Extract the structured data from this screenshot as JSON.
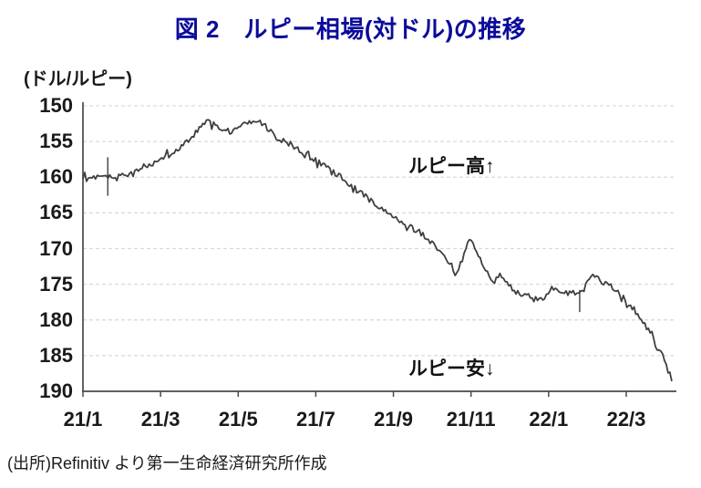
{
  "title": "図 2　ルピー相場(対ドル)の推移",
  "unit_label": "(ドル/ルピー)",
  "annotations": {
    "high": "ルピー高↑",
    "low": "ルピー安↓"
  },
  "source": "(出所)Refinitiv より第一生命経済研究所作成",
  "colors": {
    "title": "#0b0b9b",
    "line": "#3f3f3f",
    "grid": "#d9d9d9",
    "axis": "#4a4a4a",
    "text": "#1a1a1a"
  },
  "chart_data": {
    "type": "line",
    "title": "図 2　ルピー相場(対ドル)の推移",
    "ylabel": "(ドル/ルピー)",
    "y_axis_inverted": true,
    "ylim": [
      150,
      190
    ],
    "y_ticks": [
      150,
      155,
      160,
      165,
      170,
      175,
      180,
      185,
      190
    ],
    "x_tick_labels": [
      "21/1",
      "21/3",
      "21/5",
      "21/7",
      "21/9",
      "21/11",
      "22/1",
      "22/3"
    ],
    "x_tick_months": [
      0,
      2,
      4,
      6,
      8,
      10,
      12,
      14
    ],
    "x_range_months": [
      0,
      15.17
    ],
    "grid": "horizontal-dashed",
    "annotations": [
      {
        "text": "ルピー高↑",
        "anchor_value": 157.5
      },
      {
        "text": "ルピー安↓",
        "anchor_value": 185.5
      }
    ],
    "series": [
      {
        "points_month_value": [
          [
            0.0,
            160.2
          ],
          [
            0.35,
            160.0
          ],
          [
            0.64,
            160.1
          ],
          [
            0.9,
            159.9
          ],
          [
            1.1,
            159.8
          ],
          [
            1.3,
            159.5
          ],
          [
            1.5,
            158.7
          ],
          [
            1.7,
            158.1
          ],
          [
            1.9,
            157.6
          ],
          [
            2.1,
            157.2
          ],
          [
            2.3,
            156.6
          ],
          [
            2.5,
            156.0
          ],
          [
            2.7,
            154.9
          ],
          [
            2.9,
            153.7
          ],
          [
            3.1,
            152.7
          ],
          [
            3.3,
            152.4
          ],
          [
            3.55,
            153.1
          ],
          [
            3.8,
            153.7
          ],
          [
            4.0,
            153.1
          ],
          [
            4.2,
            152.3
          ],
          [
            4.4,
            152.0
          ],
          [
            4.6,
            152.5
          ],
          [
            4.8,
            153.3
          ],
          [
            5.0,
            154.6
          ],
          [
            5.3,
            155.2
          ],
          [
            5.6,
            156.2
          ],
          [
            5.8,
            157.0
          ],
          [
            6.0,
            157.7
          ],
          [
            6.3,
            158.7
          ],
          [
            6.6,
            159.8
          ],
          [
            6.9,
            161.2
          ],
          [
            7.2,
            162.4
          ],
          [
            7.5,
            163.6
          ],
          [
            7.8,
            164.8
          ],
          [
            8.0,
            165.7
          ],
          [
            8.3,
            166.5
          ],
          [
            8.6,
            167.4
          ],
          [
            8.9,
            168.9
          ],
          [
            9.1,
            169.8
          ],
          [
            9.3,
            170.8
          ],
          [
            9.5,
            172.4
          ],
          [
            9.62,
            173.3
          ],
          [
            9.78,
            171.6
          ],
          [
            9.95,
            168.9
          ],
          [
            10.15,
            170.4
          ],
          [
            10.35,
            172.7
          ],
          [
            10.55,
            175.1
          ],
          [
            10.7,
            173.4
          ],
          [
            10.9,
            175.0
          ],
          [
            11.1,
            175.8
          ],
          [
            11.35,
            176.4
          ],
          [
            11.55,
            176.9
          ],
          [
            11.75,
            177.4
          ],
          [
            11.9,
            176.8
          ],
          [
            12.05,
            175.4
          ],
          [
            12.25,
            175.8
          ],
          [
            12.45,
            176.3
          ],
          [
            12.6,
            175.9
          ],
          [
            12.78,
            176.2
          ],
          [
            13.0,
            174.9
          ],
          [
            13.12,
            173.8
          ],
          [
            13.35,
            174.6
          ],
          [
            13.6,
            175.3
          ],
          [
            13.82,
            176.4
          ],
          [
            13.98,
            177.3
          ],
          [
            14.15,
            178.2
          ],
          [
            14.3,
            179.3
          ],
          [
            14.45,
            180.4
          ],
          [
            14.6,
            181.5
          ],
          [
            14.78,
            183.8
          ],
          [
            14.9,
            184.8
          ],
          [
            15.02,
            186.3
          ],
          [
            15.1,
            187.3
          ],
          [
            15.17,
            188.5
          ]
        ]
      }
    ],
    "spikes_month_value_range": [
      [
        0.64,
        157.2,
        162.6
      ],
      [
        12.8,
        175.8,
        178.9
      ]
    ]
  }
}
